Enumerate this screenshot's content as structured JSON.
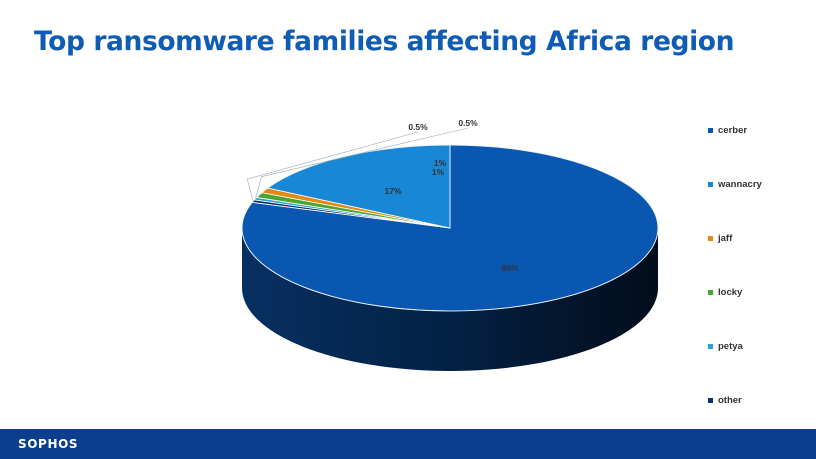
{
  "title": "Top ransomware families affecting Africa region",
  "brand": "SOPHOS",
  "colors": {
    "title": "#0F5CB5",
    "footer_bar": "#0B3E8C",
    "top_edge_highlight": "#E6EEF6"
  },
  "chart_data": {
    "type": "pie",
    "style": "3d",
    "title": "",
    "categories": [
      "cerber",
      "wannacry",
      "jaff",
      "locky",
      "petya",
      "other"
    ],
    "values": [
      80,
      17,
      1,
      1,
      0.5,
      0.5
    ],
    "labels": [
      "80%",
      "17%",
      "1%",
      "1%",
      "0.5%",
      "0.5%"
    ],
    "colors": [
      "#0A57B2",
      "#1787D6",
      "#E38A13",
      "#4DA52B",
      "#22A5D9",
      "#0B3170"
    ],
    "legend_position": "right"
  }
}
